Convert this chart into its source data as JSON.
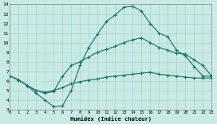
{
  "xlabel": "Humidex (Indice chaleur)",
  "bg_color": "#c8eae4",
  "grid_color": "#a8d4cc",
  "line_color": "#1a6e62",
  "xlim": [
    0,
    23
  ],
  "ylim": [
    3,
    14
  ],
  "xticks": [
    0,
    1,
    2,
    3,
    4,
    5,
    6,
    7,
    8,
    9,
    10,
    11,
    12,
    13,
    14,
    15,
    16,
    17,
    18,
    19,
    20,
    21,
    22,
    23
  ],
  "yticks": [
    3,
    4,
    5,
    6,
    7,
    8,
    9,
    10,
    11,
    12,
    13,
    14
  ],
  "line1_x": [
    0,
    1,
    2,
    3,
    4,
    5,
    6,
    7,
    8,
    9,
    10,
    11,
    12,
    13,
    14,
    15,
    16,
    17,
    18,
    19,
    20,
    21,
    22,
    23
  ],
  "line1_y": [
    6.5,
    6.1,
    5.5,
    4.7,
    4.0,
    3.3,
    3.4,
    5.0,
    7.6,
    9.5,
    10.9,
    12.2,
    12.9,
    13.7,
    13.8,
    13.3,
    12.0,
    11.0,
    10.6,
    9.2,
    8.6,
    7.5,
    6.5,
    6.5
  ],
  "line2_x": [
    0,
    1,
    2,
    3,
    4,
    5,
    6,
    7,
    8,
    9,
    10,
    11,
    12,
    13,
    14,
    15,
    16,
    17,
    18,
    19,
    20,
    21,
    22,
    23
  ],
  "line2_y": [
    6.5,
    6.1,
    5.5,
    5.0,
    4.7,
    4.9,
    6.5,
    7.6,
    8.0,
    8.5,
    9.0,
    9.3,
    9.6,
    10.0,
    10.3,
    10.5,
    10.0,
    9.5,
    9.2,
    8.9,
    8.8,
    8.2,
    7.6,
    6.5
  ],
  "line3_x": [
    0,
    1,
    2,
    3,
    4,
    5,
    6,
    7,
    8,
    9,
    10,
    11,
    12,
    13,
    14,
    15,
    16,
    17,
    18,
    19,
    20,
    21,
    22,
    23
  ],
  "line3_y": [
    6.5,
    6.1,
    5.5,
    5.0,
    4.8,
    5.0,
    5.3,
    5.7,
    5.9,
    6.1,
    6.2,
    6.4,
    6.5,
    6.6,
    6.7,
    6.8,
    6.9,
    6.7,
    6.6,
    6.5,
    6.4,
    6.3,
    6.3,
    6.3
  ]
}
